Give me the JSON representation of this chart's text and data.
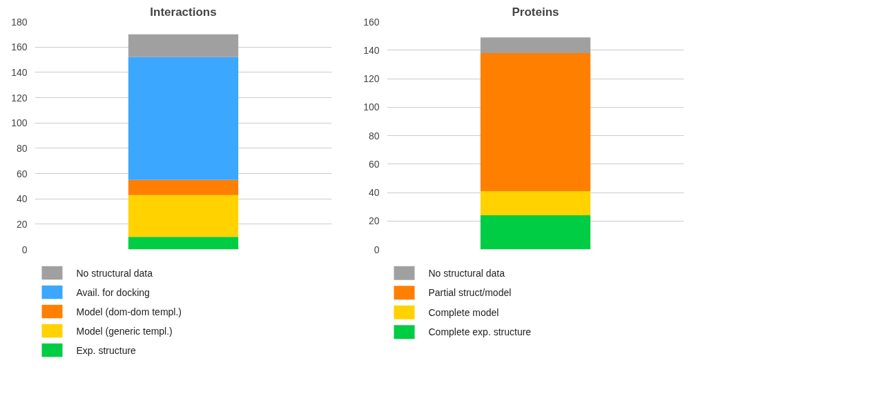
{
  "chart_data": [
    {
      "type": "bar",
      "title": "Interactions",
      "categories": [
        null
      ],
      "stacked": true,
      "ylim": [
        0,
        180
      ],
      "yticks": [
        0,
        20,
        40,
        60,
        80,
        100,
        120,
        140,
        160,
        180
      ],
      "grid": "y",
      "legend": "bottom",
      "tick_labels": "y",
      "series": [
        {
          "name": "Exp. structure",
          "color": "#00cc44",
          "values": [
            10
          ]
        },
        {
          "name": "Model (generic templ.)",
          "color": "#ffd200",
          "values": [
            33
          ]
        },
        {
          "name": "Model (dom-dom templ.)",
          "color": "#ff7f00",
          "values": [
            12
          ]
        },
        {
          "name": "Avail. for docking",
          "color": "#3ba7ff",
          "values": [
            97
          ]
        },
        {
          "name": "No structural data",
          "color": "#a0a0a0",
          "values": [
            18
          ]
        }
      ]
    },
    {
      "type": "bar",
      "title": "Proteins",
      "categories": [
        null
      ],
      "stacked": true,
      "ylim": [
        0,
        160
      ],
      "yticks": [
        0,
        20,
        40,
        60,
        80,
        100,
        120,
        140,
        160
      ],
      "grid": "y",
      "legend": "bottom",
      "tick_labels": "y",
      "series": [
        {
          "name": "Complete exp. structure",
          "color": "#00cc44",
          "values": [
            24
          ]
        },
        {
          "name": "Complete model",
          "color": "#ffd200",
          "values": [
            17
          ]
        },
        {
          "name": "Partial struct/model",
          "color": "#ff7f00",
          "values": [
            97
          ]
        },
        {
          "name": "No structural data",
          "color": "#a0a0a0",
          "values": [
            11
          ]
        }
      ]
    }
  ]
}
